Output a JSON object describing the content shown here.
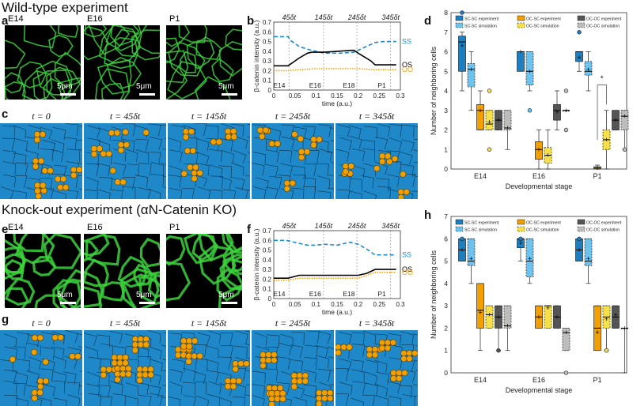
{
  "sections": {
    "wt_title": "Wild-type experiment",
    "ko_title": "Knock-out experiment (αN-Catenin KO)"
  },
  "panel_letters": {
    "a": "a",
    "b": "b",
    "c": "c",
    "d": "d",
    "e": "e",
    "f": "f",
    "g": "g",
    "h": "h"
  },
  "micro_labels": [
    "E14",
    "E16",
    "P1"
  ],
  "scale_label": "5μm",
  "sim_labels": [
    "t = 0",
    "t = 45δt",
    "t = 145δt",
    "t = 245δt",
    "t = 345δt"
  ],
  "colors": {
    "ss": "#1e88c8",
    "os": "#000000",
    "oo": "#f5a000",
    "sim_bg": "#1e88c8",
    "cell": "#f0a000"
  },
  "chart_data": [
    {
      "id": "b",
      "type": "line",
      "ylabel": "β-catenin intensity (a.u.)",
      "xlabel": "time (a.u.)",
      "xlim": [
        0,
        0.3
      ],
      "ylim": [
        0,
        0.7
      ],
      "xticks": [
        "0",
        "0.05",
        "0.1",
        "0.15",
        "0.2",
        "0.25",
        "0.3"
      ],
      "yticks": [
        "0",
        "0.1",
        "0.2",
        "0.3",
        "0.4",
        "0.5",
        "0.6",
        "0.7"
      ],
      "vlines": [
        {
          "x": 0.036,
          "label": "45δt"
        },
        {
          "x": 0.118,
          "label": "145δt"
        },
        {
          "x": 0.197,
          "label": "245δt"
        },
        {
          "x": 0.277,
          "label": "345δt"
        }
      ],
      "stages": [
        {
          "x": 0.013,
          "label": "E14"
        },
        {
          "x": 0.098,
          "label": "E16"
        },
        {
          "x": 0.178,
          "label": "E18"
        },
        {
          "x": 0.256,
          "label": "P1"
        }
      ],
      "series": [
        {
          "name": "SS",
          "style": "dashed",
          "color": "#1e88c8",
          "x": [
            0,
            0.034,
            0.04,
            0.06,
            0.08,
            0.1,
            0.12,
            0.16,
            0.19,
            0.2,
            0.22,
            0.24,
            0.26,
            0.28,
            0.29
          ],
          "y": [
            0.55,
            0.55,
            0.51,
            0.45,
            0.42,
            0.4,
            0.38,
            0.38,
            0.39,
            0.41,
            0.45,
            0.49,
            0.5,
            0.5,
            0.5
          ]
        },
        {
          "name": "OS",
          "style": "solid",
          "color": "#000000",
          "x": [
            0,
            0.034,
            0.06,
            0.08,
            0.09,
            0.12,
            0.19,
            0.2,
            0.23,
            0.24,
            0.29
          ],
          "y": [
            0.25,
            0.25,
            0.33,
            0.38,
            0.39,
            0.39,
            0.41,
            0.38,
            0.3,
            0.26,
            0.26
          ]
        },
        {
          "name": "OO",
          "style": "dotted",
          "color": "#f5a000",
          "x": [
            0,
            0.034,
            0.06,
            0.1,
            0.19,
            0.2,
            0.24,
            0.29
          ],
          "y": [
            0.2,
            0.2,
            0.21,
            0.22,
            0.22,
            0.22,
            0.21,
            0.21
          ]
        }
      ]
    },
    {
      "id": "f",
      "type": "line",
      "ylabel": "β-catenin intensity (a.u.)",
      "xlabel": "time (a.u.)",
      "xlim": [
        0,
        0.3
      ],
      "ylim": [
        0,
        0.7
      ],
      "xticks": [
        "0",
        "0.05",
        "0.1",
        "0.15",
        "0.2",
        "0.25",
        "0.3"
      ],
      "yticks": [
        "0",
        "0.1",
        "0.2",
        "0.3",
        "0.4",
        "0.5",
        "0.6",
        "0.7"
      ],
      "vlines": [
        {
          "x": 0.036,
          "label": "45δt"
        },
        {
          "x": 0.118,
          "label": "145δt"
        },
        {
          "x": 0.197,
          "label": "245δt"
        },
        {
          "x": 0.277,
          "label": "345δt"
        }
      ],
      "stages": [
        {
          "x": 0.013,
          "label": "E14"
        },
        {
          "x": 0.098,
          "label": "E16"
        },
        {
          "x": 0.178,
          "label": "E18"
        },
        {
          "x": 0.256,
          "label": "P1"
        }
      ],
      "series": [
        {
          "name": "SS",
          "style": "dashed",
          "color": "#1e88c8",
          "x": [
            0,
            0.03,
            0.06,
            0.08,
            0.1,
            0.12,
            0.15,
            0.18,
            0.2,
            0.22,
            0.24,
            0.26,
            0.29
          ],
          "y": [
            0.6,
            0.6,
            0.57,
            0.55,
            0.55,
            0.56,
            0.55,
            0.58,
            0.56,
            0.51,
            0.45,
            0.45,
            0.45
          ]
        },
        {
          "name": "OS",
          "style": "solid",
          "color": "#000000",
          "x": [
            0,
            0.034,
            0.06,
            0.2,
            0.22,
            0.24,
            0.29
          ],
          "y": [
            0.21,
            0.21,
            0.24,
            0.24,
            0.26,
            0.3,
            0.3
          ]
        },
        {
          "name": "OO",
          "style": "dotted",
          "color": "#f5a000",
          "x": [
            0,
            0.034,
            0.06,
            0.2,
            0.24,
            0.29
          ],
          "y": [
            0.19,
            0.19,
            0.21,
            0.21,
            0.27,
            0.27
          ]
        }
      ]
    },
    {
      "id": "d",
      "type": "box",
      "ylabel": "Number of neighboring cells",
      "xlabel": "Developmental stage",
      "ylim": [
        0,
        8
      ],
      "yticks": [
        "0",
        "1",
        "2",
        "3",
        "4",
        "5",
        "6",
        "7",
        "8"
      ],
      "categories": [
        "E14",
        "E16",
        "P1"
      ],
      "legend": [
        "SC-SC experiment",
        "SC-SC simulation",
        "OC-SC experiment",
        "OC-SC simulation",
        "OC-OC experiment",
        "OC-OC simulation"
      ],
      "significance": "*",
      "boxes": [
        {
          "cat": 0,
          "s": 0,
          "q1": 5,
          "med": 6.5,
          "q3": 6.8,
          "lo": 4,
          "hi": 7,
          "mean": 6.3,
          "out": [
            8
          ]
        },
        {
          "cat": 0,
          "s": 1,
          "q1": 4.2,
          "med": 5.1,
          "q3": 5.4,
          "lo": 3,
          "hi": 6,
          "mean": 5.1,
          "out": []
        },
        {
          "cat": 0,
          "s": 2,
          "q1": 2,
          "med": 3,
          "q3": 3.3,
          "lo": 2,
          "hi": 4,
          "mean": 3.0,
          "out": []
        },
        {
          "cat": 0,
          "s": 3,
          "q1": 2,
          "med": 2.3,
          "q3": 3,
          "lo": 2,
          "hi": 3,
          "mean": 2.4,
          "out": [
            4,
            1
          ]
        },
        {
          "cat": 0,
          "s": 4,
          "q1": 2,
          "med": 2.5,
          "q3": 3,
          "lo": 2,
          "hi": 3,
          "mean": 2.5,
          "out": []
        },
        {
          "cat": 0,
          "s": 5,
          "q1": 2,
          "med": 2.1,
          "q3": 3,
          "lo": 1,
          "hi": 3,
          "mean": 2.1,
          "out": []
        },
        {
          "cat": 1,
          "s": 0,
          "q1": 5,
          "med": 6,
          "q3": 6,
          "lo": 5,
          "hi": 6,
          "mean": 6,
          "out": []
        },
        {
          "cat": 1,
          "s": 1,
          "q1": 4.3,
          "med": 5,
          "q3": 6,
          "lo": 4,
          "hi": 6,
          "mean": 5,
          "out": [
            3
          ]
        },
        {
          "cat": 1,
          "s": 2,
          "q1": 0.5,
          "med": 1,
          "q3": 1.4,
          "lo": 0,
          "hi": 2,
          "mean": 1.0,
          "out": []
        },
        {
          "cat": 1,
          "s": 3,
          "q1": 0.3,
          "med": 0.7,
          "q3": 1.1,
          "lo": 0,
          "hi": 2,
          "mean": 0.7,
          "out": []
        },
        {
          "cat": 1,
          "s": 4,
          "q1": 2.5,
          "med": 3,
          "q3": 3.3,
          "lo": 2,
          "hi": 4,
          "mean": 2.9,
          "out": []
        },
        {
          "cat": 1,
          "s": 5,
          "q1": 3,
          "med": 3,
          "q3": 3,
          "lo": 3,
          "hi": 3,
          "mean": 3,
          "out": [
            4,
            2
          ]
        },
        {
          "cat": 2,
          "s": 0,
          "q1": 5.5,
          "med": 6,
          "q3": 6,
          "lo": 5,
          "hi": 6,
          "mean": 5.7,
          "out": [
            7
          ]
        },
        {
          "cat": 2,
          "s": 1,
          "q1": 4.8,
          "med": 5,
          "q3": 5.5,
          "lo": 4,
          "hi": 6,
          "mean": 5.1,
          "out": []
        },
        {
          "cat": 2,
          "s": 2,
          "q1": 0,
          "med": 0.05,
          "q3": 0.12,
          "lo": 0,
          "hi": 0.2,
          "mean": 0.05,
          "out": []
        },
        {
          "cat": 2,
          "s": 3,
          "q1": 1,
          "med": 1.5,
          "q3": 2,
          "lo": 0,
          "hi": 3,
          "mean": 1.5,
          "out": []
        },
        {
          "cat": 2,
          "s": 4,
          "q1": 2,
          "med": 2.5,
          "q3": 3,
          "lo": 2,
          "hi": 3,
          "mean": 2.5,
          "out": []
        },
        {
          "cat": 2,
          "s": 5,
          "q1": 2,
          "med": 2.7,
          "q3": 3,
          "lo": 1,
          "hi": 3,
          "mean": 2.7,
          "out": [
            1
          ]
        }
      ]
    },
    {
      "id": "h",
      "type": "box",
      "ylabel": "Number of neighboring cells",
      "xlabel": "Developmental stage",
      "ylim": [
        0,
        7
      ],
      "yticks": [
        "0",
        "1",
        "2",
        "3",
        "4",
        "5",
        "6",
        "7"
      ],
      "categories": [
        "E14",
        "E16",
        "P1"
      ],
      "legend": [
        "SC-SC experiment",
        "SC-SC simulation",
        "OC-SC experiment",
        "OC-SC simulation",
        "OC-OC experiment",
        "OC-OC simulation"
      ],
      "boxes": [
        {
          "cat": 0,
          "s": 0,
          "q1": 5,
          "med": 5.5,
          "q3": 6,
          "lo": 5,
          "hi": 6,
          "mean": 5.5,
          "out": [
            6
          ]
        },
        {
          "cat": 0,
          "s": 1,
          "q1": 4.8,
          "med": 5,
          "q3": 6,
          "lo": 4,
          "hi": 6,
          "mean": 5.1,
          "out": []
        },
        {
          "cat": 0,
          "s": 2,
          "q1": 2,
          "med": 2.8,
          "q3": 4,
          "lo": 1,
          "hi": 4,
          "mean": 2.7,
          "out": []
        },
        {
          "cat": 0,
          "s": 3,
          "q1": 2,
          "med": 2.6,
          "q3": 3,
          "lo": 2,
          "hi": 3,
          "mean": 2.6,
          "out": []
        },
        {
          "cat": 0,
          "s": 4,
          "q1": 2,
          "med": 2.5,
          "q3": 3,
          "lo": 1,
          "hi": 3,
          "mean": 2.5,
          "out": [
            1
          ]
        },
        {
          "cat": 0,
          "s": 5,
          "q1": 2,
          "med": 2.1,
          "q3": 3,
          "lo": 1,
          "hi": 3,
          "mean": 2.1,
          "out": []
        },
        {
          "cat": 1,
          "s": 0,
          "q1": 5.6,
          "med": 6,
          "q3": 6,
          "lo": 5,
          "hi": 6,
          "mean": 5.8,
          "out": [
            6
          ]
        },
        {
          "cat": 1,
          "s": 1,
          "q1": 4.3,
          "med": 5,
          "q3": 6,
          "lo": 4,
          "hi": 6,
          "mean": 5.1,
          "out": []
        },
        {
          "cat": 1,
          "s": 2,
          "q1": 2,
          "med": 2.5,
          "q3": 3,
          "lo": 2,
          "hi": 3,
          "mean": 2.5,
          "out": []
        },
        {
          "cat": 1,
          "s": 3,
          "q1": 2,
          "med": 3,
          "q3": 3,
          "lo": 2,
          "hi": 3,
          "mean": 2.9,
          "out": []
        },
        {
          "cat": 1,
          "s": 4,
          "q1": 2,
          "med": 2.5,
          "q3": 3,
          "lo": 2,
          "hi": 3,
          "mean": 2.5,
          "out": []
        },
        {
          "cat": 1,
          "s": 5,
          "q1": 1,
          "med": 1.8,
          "q3": 2,
          "lo": 1,
          "hi": 2,
          "mean": 1.8,
          "out": [
            0
          ]
        },
        {
          "cat": 2,
          "s": 0,
          "q1": 5,
          "med": 5.5,
          "q3": 6,
          "lo": 5,
          "hi": 6,
          "mean": 5.5,
          "out": [
            6
          ]
        },
        {
          "cat": 2,
          "s": 1,
          "q1": 4.8,
          "med": 5,
          "q3": 6,
          "lo": 4,
          "hi": 6,
          "mean": 5.1,
          "out": []
        },
        {
          "cat": 2,
          "s": 2,
          "q1": 1,
          "med": 2,
          "q3": 3,
          "lo": 1,
          "hi": 3,
          "mean": 1.8,
          "out": []
        },
        {
          "cat": 2,
          "s": 3,
          "q1": 2,
          "med": 2.5,
          "q3": 3,
          "lo": 1,
          "hi": 3,
          "mean": 2.4,
          "out": [
            1
          ]
        },
        {
          "cat": 2,
          "s": 4,
          "q1": 2,
          "med": 2.5,
          "q3": 3,
          "lo": 2,
          "hi": 3,
          "mean": 2.6,
          "out": []
        },
        {
          "cat": 2,
          "s": 5,
          "q1": 2,
          "med": 2,
          "q3": 2,
          "lo": 0,
          "hi": 2,
          "mean": 2,
          "out": []
        }
      ]
    }
  ]
}
